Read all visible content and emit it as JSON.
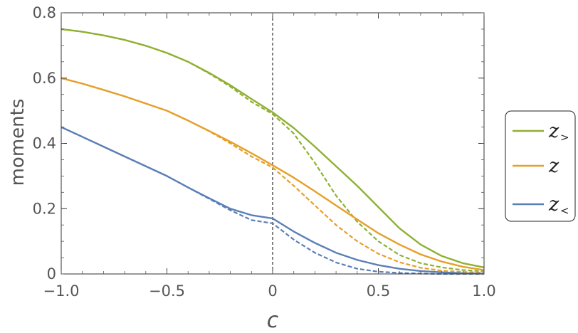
{
  "chart_data": {
    "type": "line",
    "xlabel": "c",
    "ylabel": "moments",
    "xlim": [
      -1.0,
      1.0
    ],
    "ylim": [
      0,
      0.8
    ],
    "x_ticks": [
      "−1.0",
      "−0.5",
      "0",
      "0.5",
      "1.0"
    ],
    "x_tick_values": [
      -1.0,
      -0.5,
      0,
      0.5,
      1.0
    ],
    "y_ticks": [
      "0",
      "0.2",
      "0.4",
      "0.6",
      "0.8"
    ],
    "y_tick_values": [
      0,
      0.2,
      0.4,
      0.6,
      0.8
    ],
    "grid": false,
    "legend_placement": "right",
    "vertical_reference_line": {
      "x": 0,
      "style": "dashed",
      "color": "#000000"
    },
    "x": [
      -1.0,
      -0.9,
      -0.8,
      -0.7,
      -0.6,
      -0.5,
      -0.4,
      -0.3,
      -0.2,
      -0.1,
      0.0,
      0.1,
      0.2,
      0.3,
      0.4,
      0.5,
      0.6,
      0.7,
      0.8,
      0.9,
      1.0
    ],
    "series": [
      {
        "name": "z",
        "subscript": ">",
        "color": "#8fb032",
        "solid": [
          0.75,
          0.742,
          0.731,
          0.717,
          0.699,
          0.677,
          0.65,
          0.616,
          0.578,
          0.536,
          0.495,
          0.447,
          0.39,
          0.33,
          0.27,
          0.205,
          0.14,
          0.09,
          0.055,
          0.033,
          0.02
        ],
        "dashed": [
          0.75,
          0.742,
          0.731,
          0.717,
          0.699,
          0.677,
          0.65,
          0.614,
          0.574,
          0.527,
          0.49,
          0.43,
          0.34,
          0.24,
          0.16,
          0.1,
          0.058,
          0.033,
          0.02,
          0.012,
          0.008
        ]
      },
      {
        "name": "z",
        "subscript": "",
        "color": "#e69f28",
        "solid": [
          0.6,
          0.583,
          0.564,
          0.544,
          0.522,
          0.5,
          0.47,
          0.438,
          0.405,
          0.37,
          0.333,
          0.295,
          0.253,
          0.21,
          0.167,
          0.125,
          0.09,
          0.06,
          0.038,
          0.022,
          0.012
        ],
        "dashed": [
          0.6,
          0.583,
          0.564,
          0.544,
          0.522,
          0.5,
          0.47,
          0.437,
          0.4,
          0.36,
          0.326,
          0.27,
          0.21,
          0.15,
          0.1,
          0.062,
          0.036,
          0.019,
          0.01,
          0.006,
          0.004
        ]
      },
      {
        "name": "z",
        "subscript": "<",
        "color": "#5b7fb5",
        "solid": [
          0.45,
          0.42,
          0.39,
          0.36,
          0.33,
          0.3,
          0.265,
          0.232,
          0.2,
          0.18,
          0.17,
          0.13,
          0.095,
          0.065,
          0.043,
          0.027,
          0.016,
          0.009,
          0.005,
          0.002,
          0.001
        ],
        "dashed": [
          0.45,
          0.42,
          0.39,
          0.36,
          0.33,
          0.3,
          0.265,
          0.23,
          0.195,
          0.165,
          0.155,
          0.105,
          0.065,
          0.035,
          0.016,
          0.007,
          0.003,
          0.001,
          0.0,
          0.0,
          0.0
        ]
      }
    ]
  }
}
